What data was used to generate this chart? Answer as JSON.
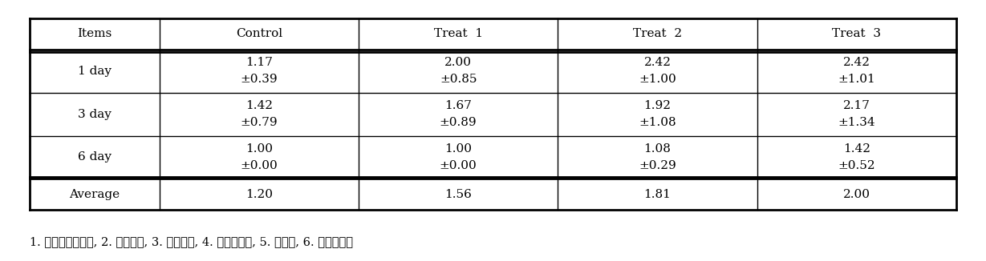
{
  "headers": [
    "Items",
    "Control",
    "Treat  1",
    "Treat  2",
    "Treat  3"
  ],
  "rows": [
    {
      "label": "1 day",
      "values": [
        "1.17\n±0.39",
        "2.00\n±0.85",
        "2.42\n±1.00",
        "2.42\n±1.01"
      ]
    },
    {
      "label": "3 day",
      "values": [
        "1.42\n±0.79",
        "1.67\n±0.89",
        "1.92\n±1.08",
        "2.17\n±1.34"
      ]
    },
    {
      "label": "6 day",
      "values": [
        "1.00\n±0.00",
        "1.00\n±0.00",
        "1.08\n±0.29",
        "1.42\n±0.52"
      ]
    },
    {
      "label": "Average",
      "values": [
        "1.20",
        "1.56",
        "1.81",
        "2.00"
      ]
    }
  ],
  "footnote": "1. 전혀나지않는다, 2. 조금난다, 3. 보통이다, 4. 조금심하다, 5. 심하다, 6. 매우심하다",
  "background_color": "#ffffff",
  "header_bg": "#ffffff",
  "text_color": "#000000",
  "border_color": "#000000",
  "font_size": 11,
  "header_font_size": 11,
  "footnote_font_size": 10.5
}
